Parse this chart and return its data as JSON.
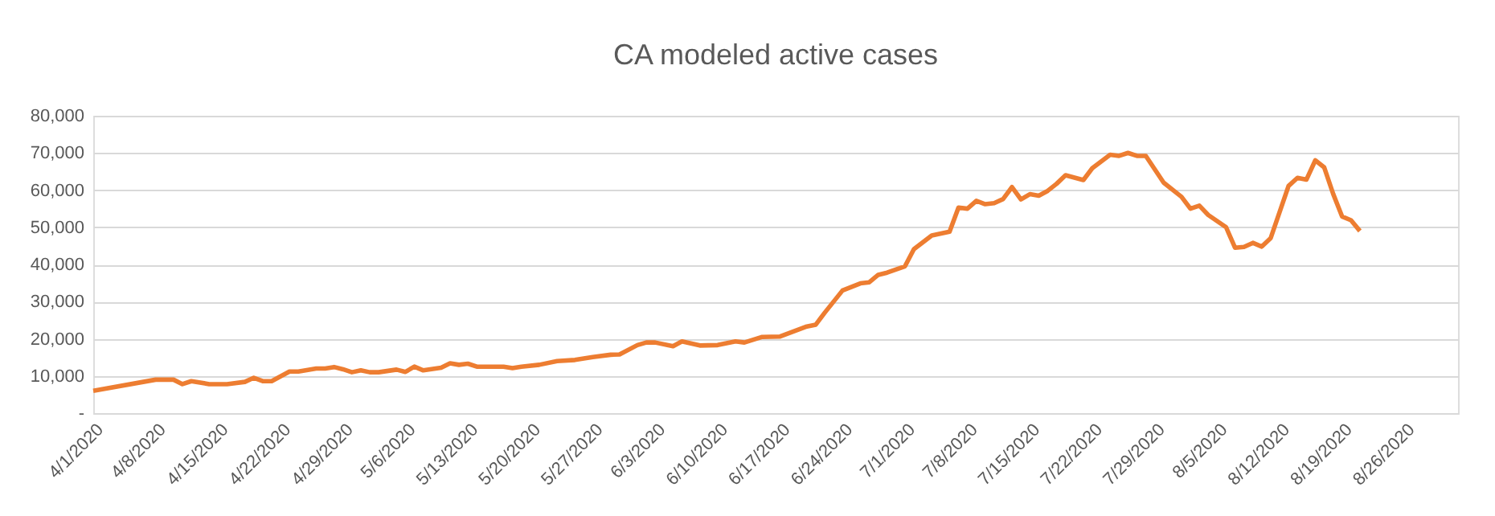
{
  "chart_data": {
    "type": "line",
    "title": "CA modeled active cases",
    "x": [
      "2020-04-01",
      "2020-04-08",
      "2020-04-10",
      "2020-04-11",
      "2020-04-12",
      "2020-04-14",
      "2020-04-16",
      "2020-04-18",
      "2020-04-19",
      "2020-04-20",
      "2020-04-21",
      "2020-04-23",
      "2020-04-24",
      "2020-04-26",
      "2020-04-27",
      "2020-04-28",
      "2020-04-29",
      "2020-04-30",
      "2020-05-01",
      "2020-05-02",
      "2020-05-03",
      "2020-05-05",
      "2020-05-06",
      "2020-05-07",
      "2020-05-08",
      "2020-05-10",
      "2020-05-11",
      "2020-05-12",
      "2020-05-13",
      "2020-05-14",
      "2020-05-17",
      "2020-05-18",
      "2020-05-19",
      "2020-05-21",
      "2020-05-23",
      "2020-05-25",
      "2020-05-27",
      "2020-05-29",
      "2020-05-30",
      "2020-06-01",
      "2020-06-02",
      "2020-06-03",
      "2020-06-05",
      "2020-06-06",
      "2020-06-08",
      "2020-06-10",
      "2020-06-12",
      "2020-06-13",
      "2020-06-15",
      "2020-06-17",
      "2020-06-20",
      "2020-06-21",
      "2020-06-22",
      "2020-06-24",
      "2020-06-26",
      "2020-06-27",
      "2020-06-28",
      "2020-06-29",
      "2020-07-01",
      "2020-07-02",
      "2020-07-04",
      "2020-07-06",
      "2020-07-07",
      "2020-07-08",
      "2020-07-09",
      "2020-07-10",
      "2020-07-11",
      "2020-07-12",
      "2020-07-13",
      "2020-07-14",
      "2020-07-15",
      "2020-07-16",
      "2020-07-17",
      "2020-07-18",
      "2020-07-19",
      "2020-07-21",
      "2020-07-22",
      "2020-07-24",
      "2020-07-25",
      "2020-07-26",
      "2020-07-27",
      "2020-07-28",
      "2020-07-30",
      "2020-08-01",
      "2020-08-02",
      "2020-08-03",
      "2020-08-04",
      "2020-08-06",
      "2020-08-07",
      "2020-08-08",
      "2020-08-09",
      "2020-08-10",
      "2020-08-11",
      "2020-08-13",
      "2020-08-14",
      "2020-08-15",
      "2020-08-16",
      "2020-08-17",
      "2020-08-18",
      "2020-08-19",
      "2020-08-20",
      "2020-08-21"
    ],
    "series": [
      {
        "color": "#ed7d31",
        "values": [
          6000,
          9000,
          9000,
          7800,
          8600,
          7800,
          7800,
          8400,
          9500,
          8600,
          8600,
          11200,
          11200,
          12000,
          12000,
          12400,
          11800,
          11000,
          11500,
          11000,
          11000,
          11700,
          11100,
          12500,
          11500,
          12200,
          13400,
          13000,
          13300,
          12500,
          12500,
          12100,
          12500,
          13000,
          14000,
          14300,
          15100,
          15700,
          15800,
          18300,
          19000,
          19000,
          18000,
          19300,
          18200,
          18300,
          19300,
          19000,
          20500,
          20600,
          23300,
          23800,
          27000,
          33000,
          34900,
          35200,
          37200,
          37800,
          39500,
          44100,
          47800,
          48800,
          55300,
          55000,
          57100,
          56200,
          56500,
          57600,
          60800,
          57500,
          58900,
          58500,
          59800,
          61700,
          64000,
          62700,
          65900,
          69500,
          69200,
          70000,
          69200,
          69200,
          62000,
          58200,
          55000,
          55800,
          53300,
          50000,
          44500,
          44700,
          45800,
          44800,
          47100,
          61100,
          63300,
          62800,
          68000,
          66100,
          59000,
          52900,
          51900,
          49000
        ]
      }
    ],
    "xlim": [
      "2020-04-01",
      "2020-09-01"
    ],
    "xticks": [
      {
        "value": "2020-04-01",
        "label": "4/1/2020"
      },
      {
        "value": "2020-04-08",
        "label": "4/8/2020"
      },
      {
        "value": "2020-04-15",
        "label": "4/15/2020"
      },
      {
        "value": "2020-04-22",
        "label": "4/22/2020"
      },
      {
        "value": "2020-04-29",
        "label": "4/29/2020"
      },
      {
        "value": "2020-05-06",
        "label": "5/6/2020"
      },
      {
        "value": "2020-05-13",
        "label": "5/13/2020"
      },
      {
        "value": "2020-05-20",
        "label": "5/20/2020"
      },
      {
        "value": "2020-05-27",
        "label": "5/27/2020"
      },
      {
        "value": "2020-06-03",
        "label": "6/3/2020"
      },
      {
        "value": "2020-06-10",
        "label": "6/10/2020"
      },
      {
        "value": "2020-06-17",
        "label": "6/17/2020"
      },
      {
        "value": "2020-06-24",
        "label": "6/24/2020"
      },
      {
        "value": "2020-07-01",
        "label": "7/1/2020"
      },
      {
        "value": "2020-07-08",
        "label": "7/8/2020"
      },
      {
        "value": "2020-07-15",
        "label": "7/15/2020"
      },
      {
        "value": "2020-07-22",
        "label": "7/22/2020"
      },
      {
        "value": "2020-07-29",
        "label": "7/29/2020"
      },
      {
        "value": "2020-08-05",
        "label": "8/5/2020"
      },
      {
        "value": "2020-08-12",
        "label": "8/12/2020"
      },
      {
        "value": "2020-08-19",
        "label": "8/19/2020"
      },
      {
        "value": "2020-08-26",
        "label": "8/26/2020"
      }
    ],
    "ylim": [
      0,
      80000
    ],
    "yticks": [
      {
        "value": 0,
        "label": "-"
      },
      {
        "value": 10000,
        "label": "10,000"
      },
      {
        "value": 20000,
        "label": "20,000"
      },
      {
        "value": 30000,
        "label": "30,000"
      },
      {
        "value": 40000,
        "label": "40,000"
      },
      {
        "value": 50000,
        "label": "50,000"
      },
      {
        "value": 60000,
        "label": "60,000"
      },
      {
        "value": 70000,
        "label": "70,000"
      },
      {
        "value": 80000,
        "label": "80,000"
      }
    ],
    "grid": "y",
    "marker": "none",
    "line_style": "solid"
  }
}
